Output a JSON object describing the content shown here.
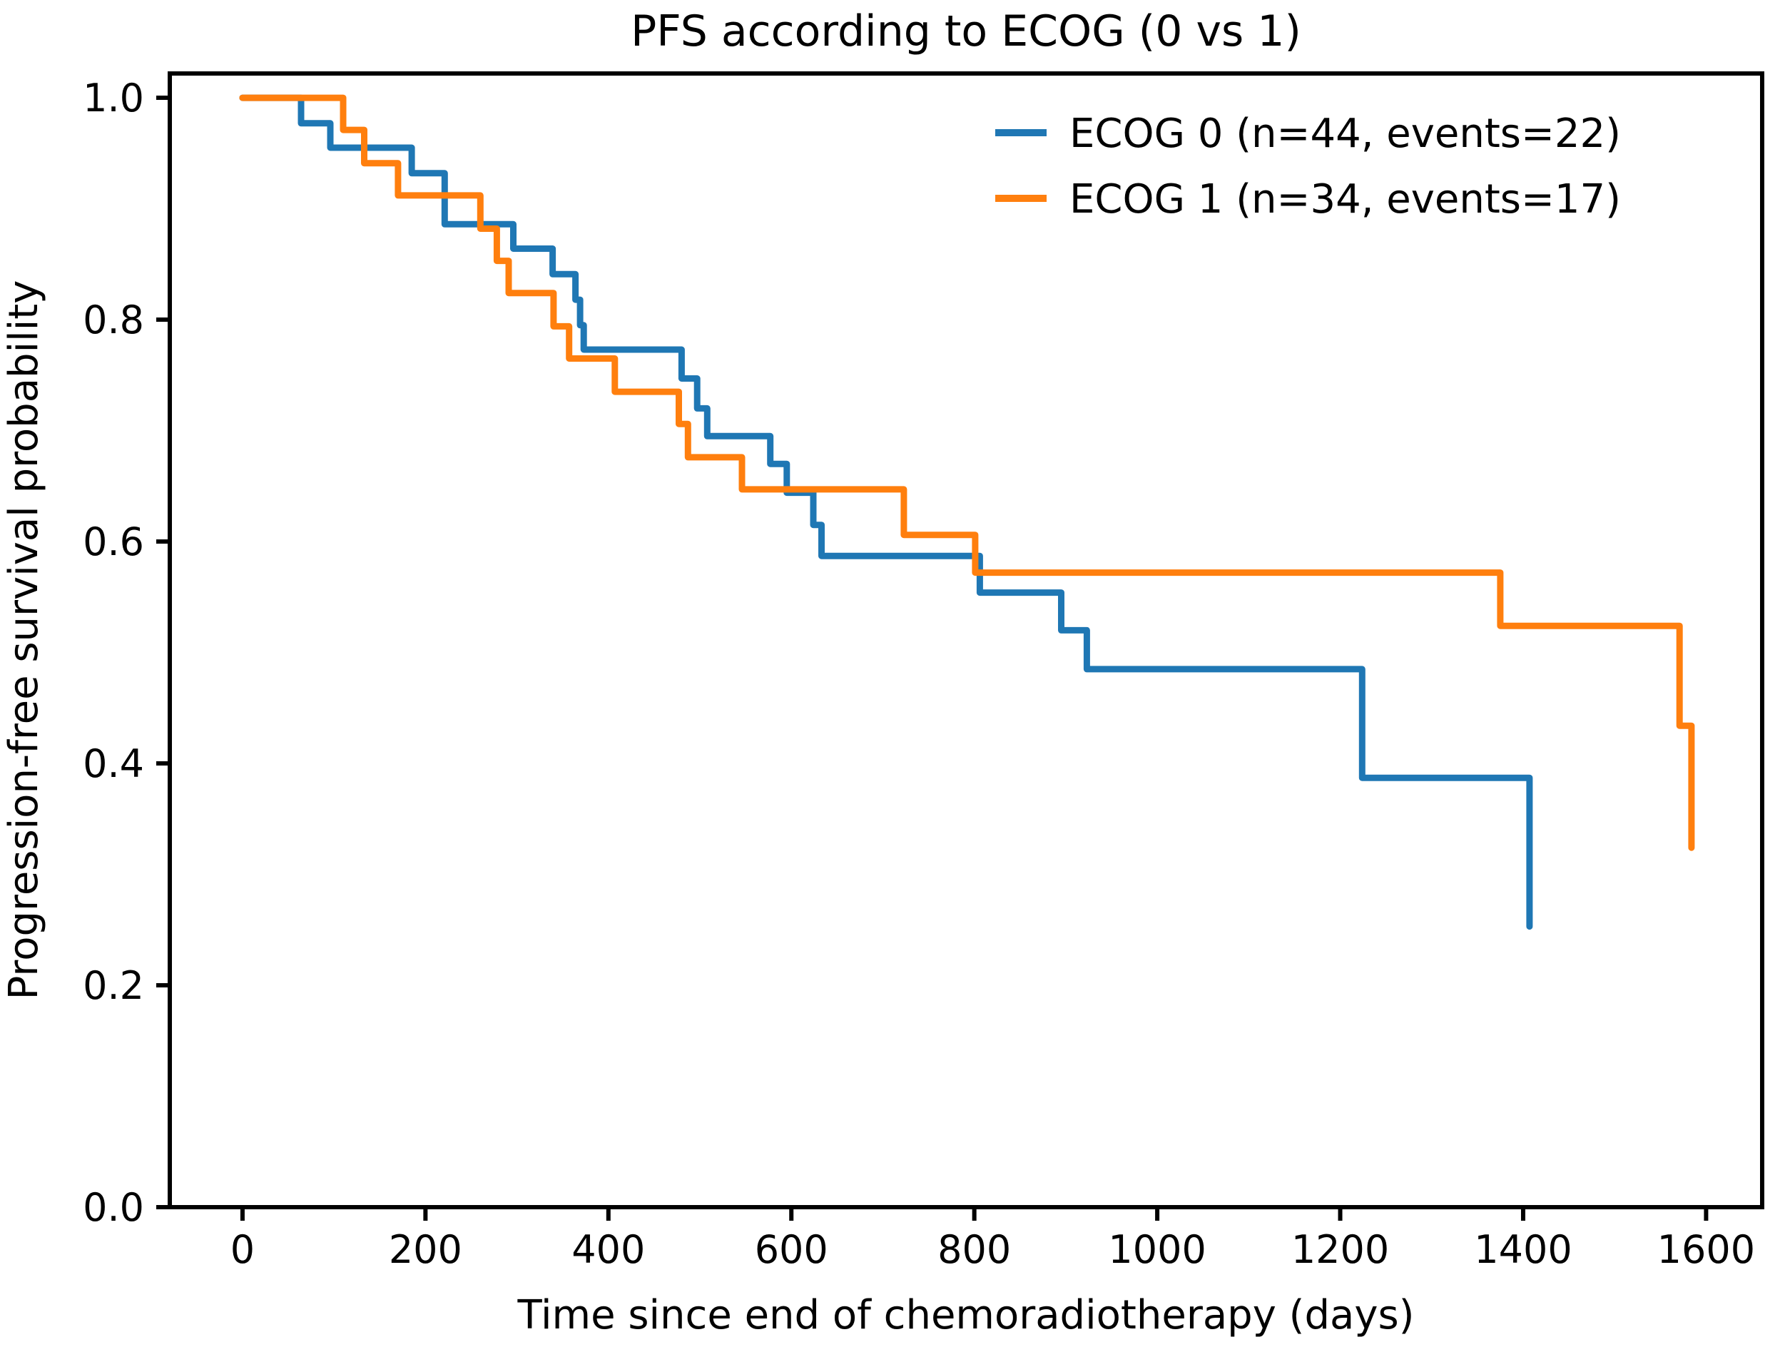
{
  "title": "PFS according to ECOG (0 vs 1)",
  "chart_data": {
    "type": "line",
    "subtype": "kaplan-meier-step",
    "title": "PFS according to ECOG (0 vs 1)",
    "xlabel": "Time since end of chemoradiotherapy (days)",
    "ylabel": "Progression-free survival probability",
    "xlim": [
      -79.5,
      1661.3
    ],
    "ylim": [
      0,
      1.0219
    ],
    "x_ticks": [
      0,
      200,
      400,
      600,
      800,
      1000,
      1200,
      1400,
      1600
    ],
    "x_tick_labels": [
      "0",
      "200",
      "400",
      "600",
      "800",
      "1000",
      "1200",
      "1400",
      "1600"
    ],
    "y_ticks": [
      0.0,
      0.2,
      0.4,
      0.6,
      0.8,
      1.0
    ],
    "y_tick_labels": [
      "0.0",
      "0.2",
      "0.4",
      "0.6",
      "0.8",
      "1.0"
    ],
    "grid": false,
    "legend_position": "upper right",
    "axis_color": "#000000",
    "background_color": "#ffffff",
    "series": [
      {
        "name": "ECOG 0 (n=44, events=22)",
        "group": "ECOG 0",
        "n": 44,
        "events": 22,
        "color": "#1f77b4",
        "points": [
          [
            0,
            1.0
          ],
          [
            64,
            0.977
          ],
          [
            96,
            0.955
          ],
          [
            185,
            0.932
          ],
          [
            221,
            0.886
          ],
          [
            296,
            0.864
          ],
          [
            339,
            0.841
          ],
          [
            364,
            0.818
          ],
          [
            369,
            0.795
          ],
          [
            373,
            0.773
          ],
          [
            480,
            0.747
          ],
          [
            497,
            0.72
          ],
          [
            508,
            0.695
          ],
          [
            577,
            0.67
          ],
          [
            595,
            0.644
          ],
          [
            624,
            0.615
          ],
          [
            633,
            0.587
          ],
          [
            806,
            0.554
          ],
          [
            895,
            0.52
          ],
          [
            923,
            0.485
          ],
          [
            1224,
            0.387
          ],
          [
            1407,
            0.253
          ]
        ]
      },
      {
        "name": "ECOG 1 (n=34, events=17)",
        "group": "ECOG 1",
        "n": 34,
        "events": 17,
        "color": "#ff7f0e",
        "points": [
          [
            0,
            1.0
          ],
          [
            110,
            0.971
          ],
          [
            133,
            0.941
          ],
          [
            170,
            0.912
          ],
          [
            260,
            0.882
          ],
          [
            278,
            0.853
          ],
          [
            291,
            0.824
          ],
          [
            340,
            0.794
          ],
          [
            357,
            0.765
          ],
          [
            407,
            0.735
          ],
          [
            477,
            0.706
          ],
          [
            487,
            0.676
          ],
          [
            546,
            0.647
          ],
          [
            723,
            0.606
          ],
          [
            801,
            0.572
          ],
          [
            1375,
            0.524
          ],
          [
            1571,
            0.434
          ],
          [
            1584,
            0.324
          ]
        ]
      }
    ]
  }
}
